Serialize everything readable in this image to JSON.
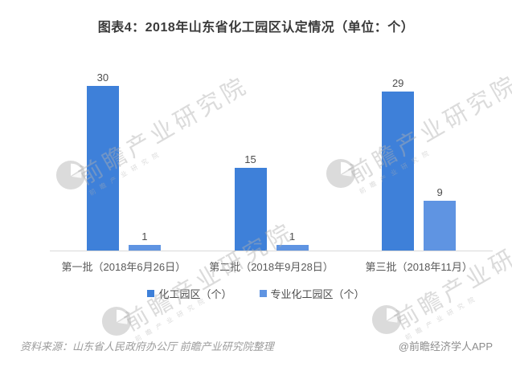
{
  "title": "图表4：2018年山东省化工园区认定情况（单位：个）",
  "chart_data": {
    "type": "bar",
    "categories": [
      "第一批（2018年6月26日）",
      "第二批（2018年9月28日）",
      "第三批（2018年11月）"
    ],
    "series": [
      {
        "name": "化工园区（个）",
        "color": "#3e80d9",
        "values": [
          30,
          15,
          29
        ]
      },
      {
        "name": "专业化工园区（个）",
        "color": "#5f94e2",
        "values": [
          1,
          1,
          9
        ]
      }
    ],
    "ylim": [
      0,
      30
    ],
    "grid": false,
    "value_labels": true,
    "legend_position": "bottom",
    "axis_line_color": "#d9d9d9"
  },
  "watermark": {
    "big_text": "前瞻产业研究院",
    "small_text": "前瞻产业研究院",
    "logo": "qianzhan-logo"
  },
  "footer": {
    "source": "资料来源：山东省人民政府办公厅  前瞻产业研究院整理",
    "credit": "@前瞻经济学人APP"
  }
}
